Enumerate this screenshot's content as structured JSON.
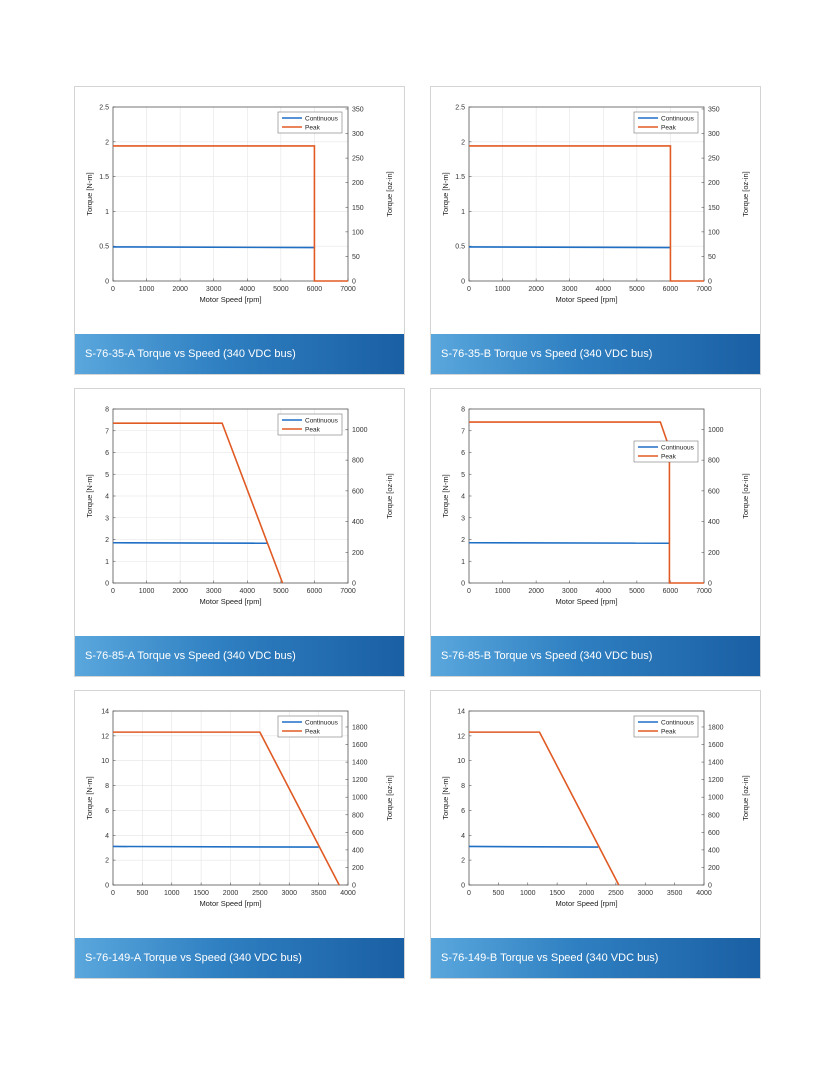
{
  "colors": {
    "continuous": "#1f6fc5",
    "peak": "#e05a24",
    "grid": "#e4e4e4"
  },
  "chart_data": [
    {
      "type": "line",
      "title": "S-76-35-A Torque vs Speed (340 VDC bus)",
      "xlabel": "Motor Speed [rpm]",
      "ylabel": "Torque [N-m]",
      "y2label": "Torque [oz-in]",
      "xlim": [
        0,
        7000
      ],
      "ylim": [
        0,
        2.5
      ],
      "y2lim": [
        0,
        354
      ],
      "xticks": [
        0,
        1000,
        2000,
        3000,
        4000,
        5000,
        6000,
        7000
      ],
      "yticks": [
        0,
        0.5,
        1,
        1.5,
        2,
        2.5
      ],
      "y2ticks": [
        0,
        50,
        100,
        150,
        200,
        250,
        300,
        350
      ],
      "legend_position": "top-right",
      "grid": true,
      "series": [
        {
          "name": "Continuous",
          "x": [
            0,
            6000
          ],
          "y": [
            0.49,
            0.48
          ]
        },
        {
          "name": "Peak",
          "x": [
            0,
            6000,
            6000,
            7000
          ],
          "y": [
            1.94,
            1.94,
            0,
            0
          ]
        }
      ]
    },
    {
      "type": "line",
      "title": "S-76-35-B Torque vs Speed (340 VDC bus)",
      "xlabel": "Motor Speed [rpm]",
      "ylabel": "Torque [N-m]",
      "y2label": "Torque [oz-in]",
      "xlim": [
        0,
        7000
      ],
      "ylim": [
        0,
        2.5
      ],
      "y2lim": [
        0,
        354
      ],
      "xticks": [
        0,
        1000,
        2000,
        3000,
        4000,
        5000,
        6000,
        7000
      ],
      "yticks": [
        0,
        0.5,
        1,
        1.5,
        2,
        2.5
      ],
      "y2ticks": [
        0,
        50,
        100,
        150,
        200,
        250,
        300,
        350
      ],
      "legend_position": "top-right",
      "grid": true,
      "series": [
        {
          "name": "Continuous",
          "x": [
            0,
            6000
          ],
          "y": [
            0.49,
            0.48
          ]
        },
        {
          "name": "Peak",
          "x": [
            0,
            6000,
            6000,
            7000
          ],
          "y": [
            1.94,
            1.94,
            0,
            0
          ]
        }
      ]
    },
    {
      "type": "line",
      "title": "S-76-85-A Torque vs Speed (340 VDC bus)",
      "xlabel": "Motor Speed [rpm]",
      "ylabel": "Torque [N-m]",
      "y2label": "Torque [oz-in]",
      "xlim": [
        0,
        7000
      ],
      "ylim": [
        0,
        8
      ],
      "y2lim": [
        0,
        1133
      ],
      "xticks": [
        0,
        1000,
        2000,
        3000,
        4000,
        5000,
        6000,
        7000
      ],
      "yticks": [
        0,
        1,
        2,
        3,
        4,
        5,
        6,
        7,
        8
      ],
      "y2ticks": [
        0,
        200,
        400,
        600,
        800,
        1000
      ],
      "legend_position": "top-right",
      "grid": true,
      "series": [
        {
          "name": "Continuous",
          "x": [
            0,
            4600
          ],
          "y": [
            1.85,
            1.83
          ]
        },
        {
          "name": "Peak",
          "x": [
            0,
            3250,
            5050
          ],
          "y": [
            7.35,
            7.35,
            0
          ]
        }
      ]
    },
    {
      "type": "line",
      "title": "S-76-85-B Torque vs Speed (340 VDC bus)",
      "xlabel": "Motor Speed [rpm]",
      "ylabel": "Torque [N-m]",
      "y2label": "Torque [oz-in]",
      "xlim": [
        0,
        7000
      ],
      "ylim": [
        0,
        8
      ],
      "y2lim": [
        0,
        1133
      ],
      "xticks": [
        0,
        1000,
        2000,
        3000,
        4000,
        5000,
        6000,
        7000
      ],
      "yticks": [
        0,
        1,
        2,
        3,
        4,
        5,
        6,
        7,
        8
      ],
      "y2ticks": [
        0,
        200,
        400,
        600,
        800,
        1000
      ],
      "legend_position": "center-right",
      "grid": false,
      "series": [
        {
          "name": "Continuous",
          "x": [
            0,
            5970
          ],
          "y": [
            1.85,
            1.83
          ]
        },
        {
          "name": "Peak",
          "x": [
            0,
            5700,
            5970,
            5970,
            7000
          ],
          "y": [
            7.4,
            7.4,
            6.2,
            0,
            0
          ]
        }
      ]
    },
    {
      "type": "line",
      "title": "S-76-149-A Torque vs Speed (340 VDC bus)",
      "xlabel": "Motor Speed [rpm]",
      "ylabel": "Torque [N-m]",
      "y2label": "Torque [oz-in]",
      "xlim": [
        0,
        4000
      ],
      "ylim": [
        0,
        14
      ],
      "y2lim": [
        0,
        1982
      ],
      "xticks": [
        0,
        500,
        1000,
        1500,
        2000,
        2500,
        3000,
        3500,
        4000
      ],
      "yticks": [
        0,
        2,
        4,
        6,
        8,
        10,
        12,
        14
      ],
      "y2ticks": [
        0,
        200,
        400,
        600,
        800,
        1000,
        1200,
        1400,
        1600,
        1800
      ],
      "legend_position": "top-right",
      "grid": true,
      "series": [
        {
          "name": "Continuous",
          "x": [
            0,
            3500
          ],
          "y": [
            3.1,
            3.05
          ]
        },
        {
          "name": "Peak",
          "x": [
            0,
            2500,
            3850
          ],
          "y": [
            12.3,
            12.3,
            0
          ]
        }
      ]
    },
    {
      "type": "line",
      "title": "S-76-149-B Torque vs Speed (340 VDC bus)",
      "xlabel": "Motor Speed [rpm]",
      "ylabel": "Torque [N-m]",
      "y2label": "Torque [oz-in]",
      "xlim": [
        0,
        4000
      ],
      "ylim": [
        0,
        14
      ],
      "y2lim": [
        0,
        1982
      ],
      "xticks": [
        0,
        500,
        1000,
        1500,
        2000,
        2500,
        3000,
        3500,
        4000
      ],
      "yticks": [
        0,
        2,
        4,
        6,
        8,
        10,
        12,
        14
      ],
      "y2ticks": [
        0,
        200,
        400,
        600,
        800,
        1000,
        1200,
        1400,
        1600,
        1800
      ],
      "legend_position": "top-right",
      "grid": false,
      "series": [
        {
          "name": "Continuous",
          "x": [
            0,
            2200
          ],
          "y": [
            3.1,
            3.05
          ]
        },
        {
          "name": "Peak",
          "x": [
            0,
            1200,
            2550
          ],
          "y": [
            12.3,
            12.3,
            0
          ]
        }
      ]
    }
  ]
}
